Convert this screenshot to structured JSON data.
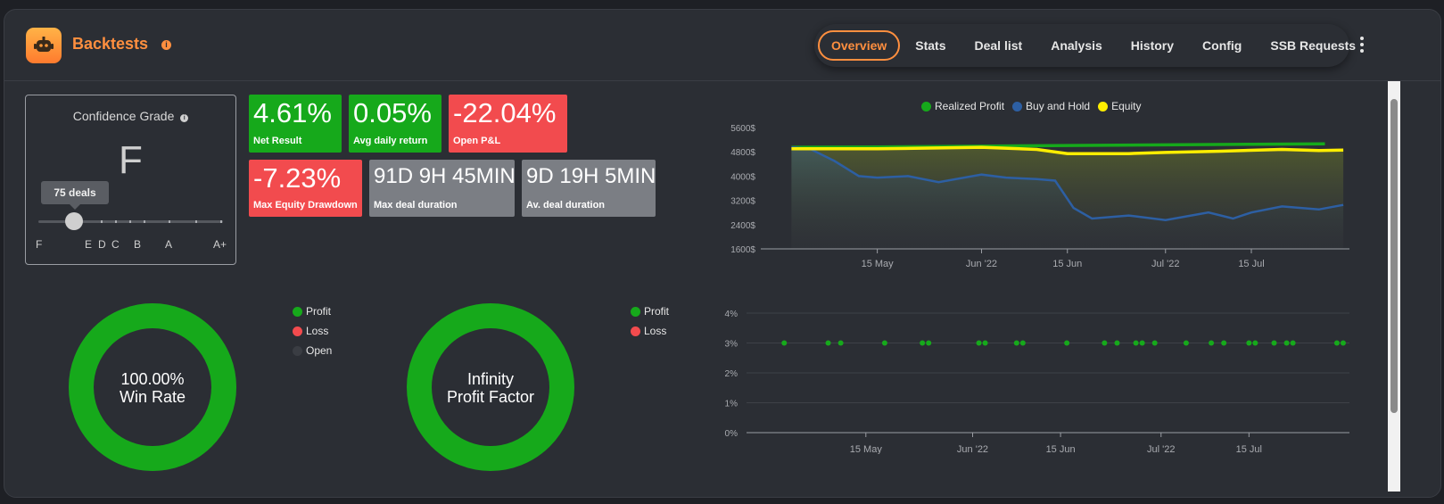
{
  "header": {
    "title": "Backtests",
    "info_icon": "info-icon",
    "tabs": [
      "Overview",
      "Stats",
      "Deal list",
      "Analysis",
      "History",
      "Config",
      "SSB Requests"
    ],
    "active_tab": "Overview"
  },
  "grade": {
    "title": "Confidence Grade",
    "value": "F",
    "deals_tooltip": "75 deals",
    "marks": [
      "F",
      "E",
      "D",
      "C",
      "B",
      "A",
      "A+"
    ]
  },
  "kpis": [
    {
      "value": "4.61%",
      "label": "Net Result",
      "color": "#16a91b"
    },
    {
      "value": "0.05%",
      "label": "Avg daily return",
      "color": "#16a91b"
    },
    {
      "value": "-22.04%",
      "label": "Open P&L",
      "color": "#f24b4e"
    },
    {
      "value": "-7.23%",
      "label": "Max Equity Drawdown",
      "color": "#f24b4e"
    },
    {
      "value": "91D 9H 45MIN",
      "label": "Max deal duration",
      "color": "#7b7e84"
    },
    {
      "value": "9D 19H 5MIN",
      "label": "Av. deal duration",
      "color": "#7b7e84"
    }
  ],
  "donuts": [
    {
      "value_line1": "100.00%",
      "value_line2": "Win Rate",
      "legend": [
        "Profit",
        "Loss",
        "Open"
      ],
      "legend_colors": [
        "#16a91b",
        "#f24b4e",
        "#3a3d43"
      ],
      "fraction": 1.0
    },
    {
      "value_line1": "Infinity",
      "value_line2": "Profit Factor",
      "legend": [
        "Profit",
        "Loss"
      ],
      "legend_colors": [
        "#16a91b",
        "#f24b4e"
      ],
      "fraction": 1.0
    }
  ],
  "chart_data": [
    {
      "type": "line",
      "legend": [
        "Realized Profit",
        "Buy and Hold",
        "Equity"
      ],
      "colors": [
        "#16a91b",
        "#2d5fa3",
        "#ffee00"
      ],
      "yticks": [
        "5600$",
        "4800$",
        "4000$",
        "3200$",
        "2400$",
        "1600$"
      ],
      "xticks": [
        "15 May",
        "Jun '22",
        "15 Jun",
        "Jul '22",
        "15 Jul"
      ],
      "ylim": [
        1600,
        5600
      ],
      "series": [
        {
          "name": "Realized Profit",
          "x": [
            "2022-05-01",
            "2022-05-15",
            "2022-06-01",
            "2022-06-15",
            "2022-07-01",
            "2022-07-15",
            "2022-07-27"
          ],
          "values": [
            4950,
            4960,
            4985,
            5010,
            5030,
            5050,
            5065
          ]
        },
        {
          "name": "Buy and Hold",
          "x": [
            "2022-05-01",
            "2022-05-04",
            "2022-05-08",
            "2022-05-12",
            "2022-05-15",
            "2022-05-20",
            "2022-05-25",
            "2022-06-01",
            "2022-06-05",
            "2022-06-10",
            "2022-06-13",
            "2022-06-16",
            "2022-06-19",
            "2022-06-25",
            "2022-07-01",
            "2022-07-08",
            "2022-07-12",
            "2022-07-15",
            "2022-07-20",
            "2022-07-26",
            "2022-07-30"
          ],
          "values": [
            4950,
            4900,
            4500,
            4000,
            3950,
            4000,
            3800,
            4050,
            3950,
            3900,
            3850,
            2950,
            2600,
            2700,
            2550,
            2800,
            2600,
            2800,
            3000,
            2900,
            3050
          ]
        },
        {
          "name": "Equity",
          "x": [
            "2022-05-01",
            "2022-05-15",
            "2022-06-01",
            "2022-06-10",
            "2022-06-15",
            "2022-06-25",
            "2022-07-01",
            "2022-07-10",
            "2022-07-20",
            "2022-07-26",
            "2022-07-30"
          ],
          "values": [
            4900,
            4900,
            4950,
            4880,
            4740,
            4740,
            4780,
            4820,
            4880,
            4840,
            4860
          ]
        }
      ]
    },
    {
      "type": "scatter",
      "yticks": [
        "4%",
        "3%",
        "2%",
        "1%",
        "0%"
      ],
      "xticks": [
        "15 May",
        "Jun '22",
        "15 Jun",
        "Jul '22",
        "15 Jul"
      ],
      "ylim": [
        0,
        4
      ],
      "color": "#16a91b",
      "x": [
        "2022-05-02",
        "2022-05-09",
        "2022-05-11",
        "2022-05-18",
        "2022-05-24",
        "2022-05-25",
        "2022-06-02",
        "2022-06-03",
        "2022-06-08",
        "2022-06-09",
        "2022-06-16",
        "2022-06-22",
        "2022-06-24",
        "2022-06-27",
        "2022-06-28",
        "2022-06-30",
        "2022-07-05",
        "2022-07-09",
        "2022-07-11",
        "2022-07-15",
        "2022-07-16",
        "2022-07-19",
        "2022-07-21",
        "2022-07-22",
        "2022-07-29",
        "2022-07-30"
      ],
      "values": [
        3,
        3,
        3,
        3,
        3,
        3,
        3,
        3,
        3,
        3,
        3,
        3,
        3,
        3,
        3,
        3,
        3,
        3,
        3,
        3,
        3,
        3,
        3,
        3,
        3,
        3
      ]
    }
  ]
}
